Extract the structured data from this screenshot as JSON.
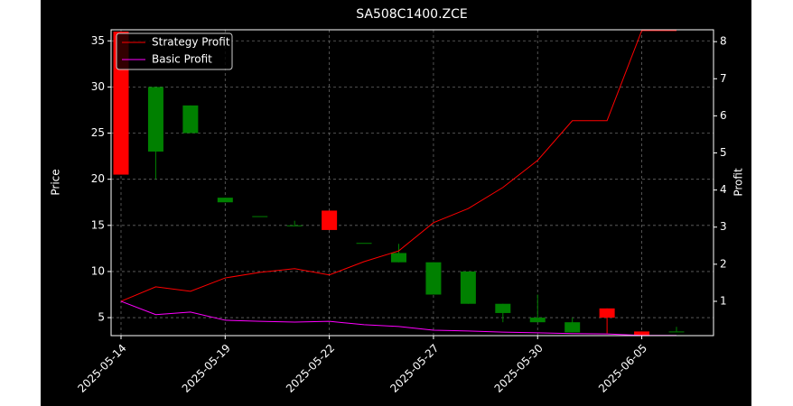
{
  "chart_data": {
    "type": "candlestick",
    "title": "SA508C1400.ZCE",
    "ylabel": "Price",
    "y2label": "Profit",
    "categories": [
      "2025-05-14",
      null,
      null,
      "2025-05-19",
      null,
      null,
      "2025-05-22",
      null,
      null,
      "2025-05-27",
      null,
      null,
      "2025-05-30",
      null,
      null,
      "2025-06-05",
      null
    ],
    "open": [
      36,
      23,
      25,
      17.5,
      16,
      15,
      16.6,
      13.1,
      11,
      7.5,
      6.5,
      5.5,
      4.5,
      3.4,
      6,
      3.5,
      3.5
    ],
    "high": [
      36,
      30,
      28,
      18,
      16,
      15.5,
      16.6,
      13.1,
      13,
      11,
      10,
      6.5,
      7.5,
      5,
      6,
      3.5,
      4
    ],
    "low": [
      20.5,
      20,
      25,
      17.5,
      16,
      15,
      14.5,
      13.1,
      11,
      7.5,
      6.5,
      4.5,
      4.5,
      3.4,
      3.3,
      3.0,
      3.5
    ],
    "close": [
      20.5,
      30,
      28,
      18,
      16,
      15,
      14.5,
      13.1,
      12,
      11,
      10,
      6.5,
      5,
      4.5,
      5,
      3.0,
      3.5
    ],
    "up_color": "#008000",
    "down_color": "#ff0000",
    "series": [
      {
        "name": "Strategy Profit",
        "color": "#ff0000",
        "axis": "y2",
        "values": [
          1.0,
          1.39,
          1.27,
          1.63,
          1.78,
          1.88,
          1.71,
          2.07,
          2.36,
          3.12,
          3.5,
          4.07,
          4.8,
          5.87,
          5.87,
          8.3,
          8.3
        ]
      },
      {
        "name": "Basic Profit",
        "color": "#ff00ff",
        "axis": "y2",
        "values": [
          1.0,
          0.64,
          0.71,
          0.49,
          0.46,
          0.44,
          0.46,
          0.37,
          0.32,
          0.22,
          0.2,
          0.17,
          0.15,
          0.13,
          0.12,
          0.08,
          0.08
        ]
      }
    ],
    "ylim": [
      3.05,
      36.2
    ],
    "yticks": [
      5,
      10,
      15,
      20,
      25,
      30,
      35
    ],
    "y2lim": [
      0.075,
      8.32
    ],
    "y2ticks": [
      1,
      2,
      3,
      4,
      5,
      6,
      7,
      8
    ],
    "grid": true,
    "legend": "upper left"
  }
}
